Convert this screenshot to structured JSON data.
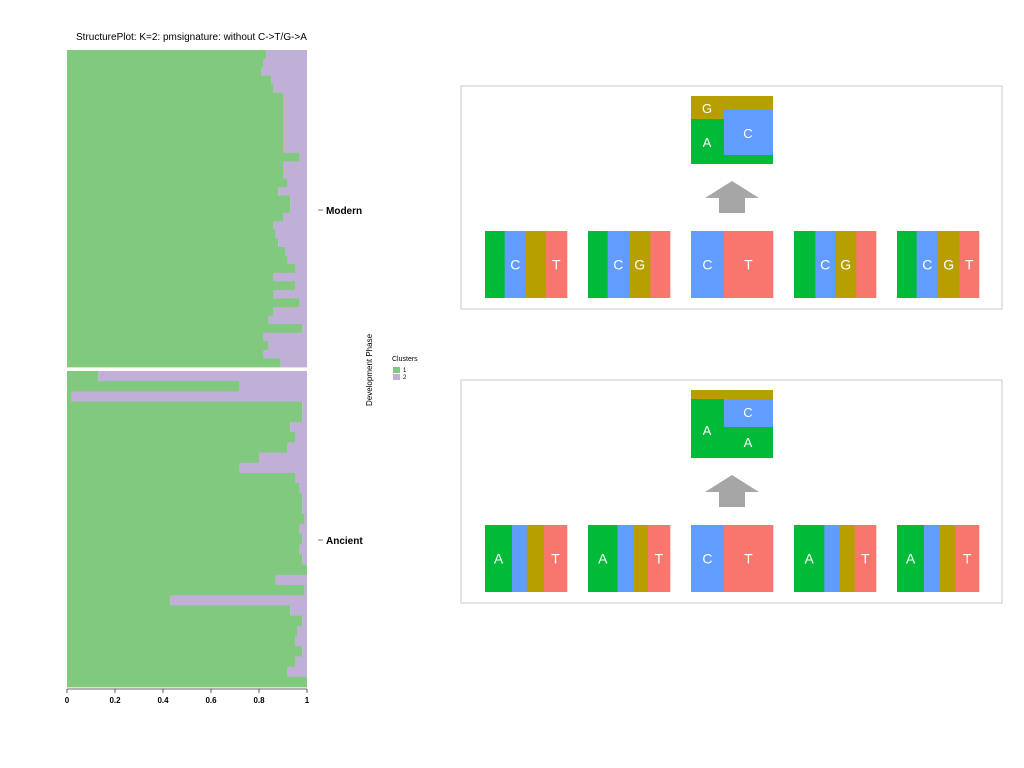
{
  "colors": {
    "cluster1": "#80c97f",
    "cluster2": "#c0afd6",
    "A": "#00ba38",
    "C": "#619cff",
    "G": "#b79f00",
    "T": "#f8766d",
    "arrow": "#a6a6a6",
    "panel_border": "#c8c8c8"
  },
  "chart_data": [
    {
      "type": "bar",
      "orientation": "horizontal-stacked",
      "title": "StructurePlot: K=2: pmsignature: without C->T/G->A",
      "ylabel": "Development Phase",
      "xlim": [
        0,
        1
      ],
      "xticks": [
        "0",
        "0.2",
        "0.4",
        "0.6",
        "0.8",
        "1"
      ],
      "legend": {
        "title": "Clusters",
        "entries": [
          "1",
          "2"
        ],
        "placement": "right"
      },
      "groups": [
        {
          "label": "Modern",
          "cluster1": [
            0.83,
            0.82,
            0.81,
            0.85,
            0.86,
            0.9,
            0.9,
            0.9,
            0.9,
            0.9,
            0.9,
            0.9,
            0.97,
            0.9,
            0.9,
            0.92,
            0.88,
            0.93,
            0.93,
            0.9,
            0.86,
            0.87,
            0.88,
            0.91,
            0.92,
            0.95,
            0.86,
            0.95,
            0.86,
            0.97,
            0.86,
            0.84,
            0.98,
            0.82,
            0.84,
            0.82,
            0.89
          ]
        },
        {
          "label": "Ancient",
          "cluster1": [
            0.13,
            0.72,
            0.02,
            0.98,
            0.98,
            0.93,
            0.95,
            0.92,
            0.8,
            0.72,
            0.95,
            0.97,
            0.98,
            0.98,
            0.99,
            0.97,
            0.98,
            0.97,
            0.98,
            1.0,
            0.87,
            0.99,
            0.43,
            0.93,
            0.98,
            0.96,
            0.95,
            0.98,
            0.95,
            0.92,
            1.0
          ]
        }
      ]
    },
    {
      "type": "diagram",
      "panels": [
        {
          "cluster": "1",
          "signature_box": {
            "columns": [
              {
                "letters": [
                  "G",
                  "A"
                ],
                "fractions": {
                  "G": 0.35,
                  "A": 0.52,
                  "C": 0.0,
                  "T": 0.0,
                  "A_base": 0.13
                }
              },
              {
                "letters": [
                  "C"
                ],
                "fractions": {
                  "G": 0.2,
                  "C": 0.67,
                  "A": 0.13
                }
              }
            ]
          },
          "positions": [
            {
              "segments": [
                {
                  "base": "A",
                  "f": 0.24
                },
                {
                  "base": "C",
                  "f": 0.26,
                  "label": "C"
                },
                {
                  "base": "G",
                  "f": 0.24
                },
                {
                  "base": "T",
                  "f": 0.26,
                  "label": "T"
                }
              ]
            },
            {
              "segments": [
                {
                  "base": "A",
                  "f": 0.24
                },
                {
                  "base": "C",
                  "f": 0.26,
                  "label": "C"
                },
                {
                  "base": "G",
                  "f": 0.26,
                  "label": "G"
                },
                {
                  "base": "T",
                  "f": 0.24
                }
              ]
            },
            {
              "segments": [
                {
                  "base": "C",
                  "f": 0.4,
                  "label": "C"
                },
                {
                  "base": "T",
                  "f": 0.6,
                  "label": "T"
                }
              ]
            },
            {
              "segments": [
                {
                  "base": "A",
                  "f": 0.26
                },
                {
                  "base": "C",
                  "f": 0.24,
                  "label": "C"
                },
                {
                  "base": "G",
                  "f": 0.26,
                  "label": "G"
                },
                {
                  "base": "T",
                  "f": 0.24
                }
              ]
            },
            {
              "segments": [
                {
                  "base": "A",
                  "f": 0.24
                },
                {
                  "base": "C",
                  "f": 0.26,
                  "label": "C"
                },
                {
                  "base": "G",
                  "f": 0.26,
                  "label": "G"
                },
                {
                  "base": "T",
                  "f": 0.24,
                  "label": "T"
                }
              ]
            }
          ]
        },
        {
          "cluster": "2",
          "positions": [
            {
              "segments": [
                {
                  "base": "A",
                  "f": 0.33,
                  "label": "A"
                },
                {
                  "base": "C",
                  "f": 0.18
                },
                {
                  "base": "G",
                  "f": 0.21
                },
                {
                  "base": "T",
                  "f": 0.28,
                  "label": "T"
                }
              ]
            },
            {
              "segments": [
                {
                  "base": "A",
                  "f": 0.36,
                  "label": "A"
                },
                {
                  "base": "C",
                  "f": 0.19
                },
                {
                  "base": "G",
                  "f": 0.18
                },
                {
                  "base": "T",
                  "f": 0.27,
                  "label": "T"
                }
              ]
            },
            {
              "segments": [
                {
                  "base": "C",
                  "f": 0.4,
                  "label": "C"
                },
                {
                  "base": "T",
                  "f": 0.6,
                  "label": "T"
                }
              ]
            },
            {
              "segments": [
                {
                  "base": "A",
                  "f": 0.37,
                  "label": "A"
                },
                {
                  "base": "C",
                  "f": 0.19
                },
                {
                  "base": "G",
                  "f": 0.18
                },
                {
                  "base": "T",
                  "f": 0.26,
                  "label": "T"
                }
              ]
            },
            {
              "segments": [
                {
                  "base": "A",
                  "f": 0.33,
                  "label": "A"
                },
                {
                  "base": "C",
                  "f": 0.19
                },
                {
                  "base": "G",
                  "f": 0.19
                },
                {
                  "base": "T",
                  "f": 0.29,
                  "label": "T"
                }
              ]
            }
          ]
        }
      ]
    }
  ]
}
